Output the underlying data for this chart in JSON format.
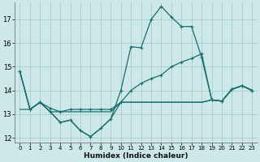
{
  "xlabel": "Humidex (Indice chaleur)",
  "bg_color": "#cce8e8",
  "grid_color": "#aacccc",
  "line_color": "#1a6e6e",
  "xlim": [
    -0.5,
    23.5
  ],
  "ylim": [
    11.8,
    17.7
  ],
  "yticks": [
    12,
    13,
    14,
    15,
    16,
    17
  ],
  "xticks": [
    0,
    1,
    2,
    3,
    4,
    5,
    6,
    7,
    8,
    9,
    10,
    11,
    12,
    13,
    14,
    15,
    16,
    17,
    18,
    19,
    20,
    21,
    22,
    23
  ],
  "lines": [
    {
      "data": [
        14.8,
        13.2,
        13.5,
        13.1,
        12.65,
        12.75,
        12.3,
        12.05,
        12.4,
        12.8,
        14.0,
        15.85,
        15.8,
        17.0,
        17.55,
        17.1,
        16.7,
        16.7,
        15.4,
        13.6,
        13.55,
        14.05,
        14.2,
        14.0
      ],
      "marker": true
    },
    {
      "data": [
        13.2,
        13.2,
        13.5,
        13.1,
        13.1,
        13.1,
        13.1,
        13.1,
        13.1,
        13.1,
        13.5,
        13.5,
        13.5,
        13.5,
        13.5,
        13.5,
        13.5,
        13.5,
        13.5,
        13.6,
        13.55,
        14.05,
        14.2,
        14.0
      ],
      "marker": false
    },
    {
      "data": [
        14.8,
        13.2,
        13.5,
        13.25,
        13.1,
        13.2,
        13.2,
        13.2,
        13.2,
        13.2,
        13.5,
        14.0,
        14.3,
        14.5,
        14.65,
        15.0,
        15.2,
        15.35,
        15.55,
        13.6,
        13.55,
        14.05,
        14.2,
        14.0
      ],
      "marker": true
    },
    {
      "data": [
        14.8,
        13.2,
        13.5,
        13.1,
        12.65,
        12.75,
        12.3,
        12.05,
        12.4,
        12.8,
        13.5,
        13.5,
        13.5,
        13.5,
        13.5,
        13.5,
        13.5,
        13.5,
        13.5,
        13.6,
        13.55,
        14.05,
        14.2,
        14.0
      ],
      "marker": false
    }
  ]
}
